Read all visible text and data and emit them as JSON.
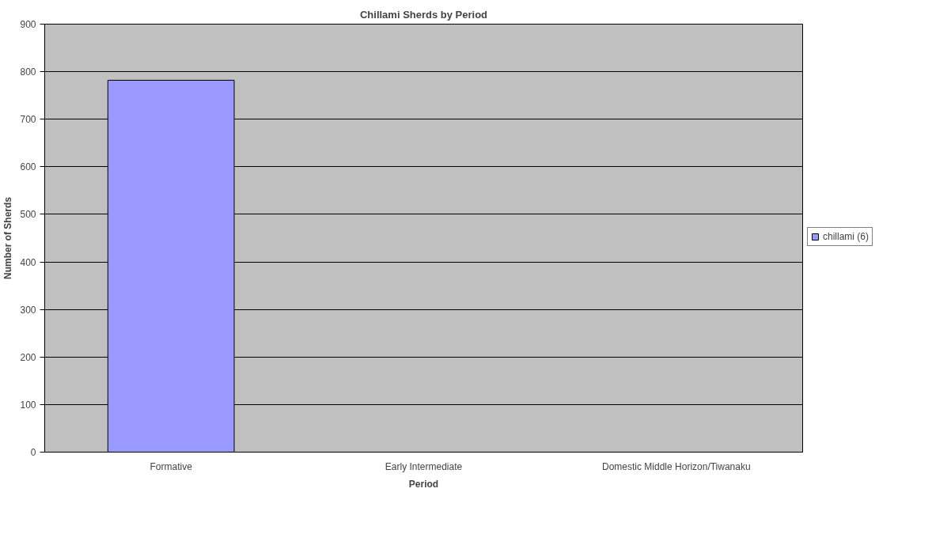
{
  "chart_data": {
    "type": "bar",
    "title": "Chillami Sherds by Period",
    "xlabel": "Period",
    "ylabel": "Number of Sherds",
    "categories": [
      "Formative",
      "Early Intermediate",
      "Domestic Middle Horizon/Tiwanaku"
    ],
    "series": [
      {
        "name": "chillami (6)",
        "color": "#9999ff",
        "values": [
          782,
          0,
          0
        ]
      }
    ],
    "ylim": [
      0,
      900
    ],
    "yticks": [
      0,
      100,
      200,
      300,
      400,
      500,
      600,
      700,
      800,
      900
    ],
    "grid": "y",
    "legend": "right"
  }
}
